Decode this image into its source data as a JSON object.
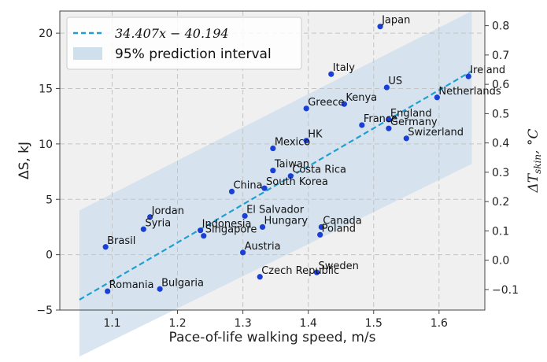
{
  "chart_data": {
    "type": "scatter",
    "xlabel": "Pace-of-life walking speed, m/s",
    "ylabel": "ΔS, kJ",
    "y2label": "ΔT_skin, °C",
    "xlim": [
      1.02,
      1.67
    ],
    "ylim": [
      -5,
      22
    ],
    "y2lim": [
      -0.17,
      0.85
    ],
    "x_ticks": [
      "1.1",
      "1.2",
      "1.3",
      "1.4",
      "1.5",
      "1.6"
    ],
    "y_ticks": [
      "−5",
      "0",
      "5",
      "10",
      "15",
      "20"
    ],
    "y2_ticks": [
      "−0.1",
      "0.0",
      "0.1",
      "0.2",
      "0.3",
      "0.4",
      "0.5",
      "0.6",
      "0.7",
      "0.8"
    ],
    "grid": true,
    "legend_position": "top-left",
    "legend": [
      "34.407x − 40.194",
      "95% prediction interval"
    ],
    "fit": {
      "slope": 34.407,
      "intercept": -40.194,
      "x_range": [
        1.05,
        1.65
      ]
    },
    "prediction_band": {
      "x": [
        1.05,
        1.65
      ],
      "lower": [
        -9.2,
        8.2
      ],
      "upper": [
        4.0,
        22.0
      ]
    },
    "colors": {
      "points": "#1a3fd6",
      "fit": "#1f9fd1",
      "band": "#cfe0ed"
    },
    "points": [
      {
        "label": "Japan",
        "x": 1.51,
        "y": 20.6
      },
      {
        "label": "Ireland",
        "x": 1.645,
        "y": 16.1
      },
      {
        "label": "Italy",
        "x": 1.435,
        "y": 16.3
      },
      {
        "label": "US",
        "x": 1.52,
        "y": 15.1
      },
      {
        "label": "Netherlands",
        "x": 1.597,
        "y": 14.2
      },
      {
        "label": "Kenya",
        "x": 1.455,
        "y": 13.6
      },
      {
        "label": "Greece",
        "x": 1.397,
        "y": 13.2
      },
      {
        "label": "England",
        "x": 1.523,
        "y": 12.2
      },
      {
        "label": "France",
        "x": 1.482,
        "y": 11.7
      },
      {
        "label": "Germany",
        "x": 1.523,
        "y": 11.4
      },
      {
        "label": "Swizerland",
        "x": 1.55,
        "y": 10.5
      },
      {
        "label": "HK",
        "x": 1.397,
        "y": 10.3
      },
      {
        "label": "Mexico",
        "x": 1.346,
        "y": 9.6
      },
      {
        "label": "Taiwan",
        "x": 1.346,
        "y": 7.6
      },
      {
        "label": "Costa Rica",
        "x": 1.373,
        "y": 7.1
      },
      {
        "label": "South Korea",
        "x": 1.333,
        "y": 6.0
      },
      {
        "label": "China",
        "x": 1.283,
        "y": 5.7
      },
      {
        "label": "Jordan",
        "x": 1.158,
        "y": 3.4
      },
      {
        "label": "El Salvador",
        "x": 1.303,
        "y": 3.5
      },
      {
        "label": "Syria",
        "x": 1.148,
        "y": 2.3
      },
      {
        "label": "Canada",
        "x": 1.42,
        "y": 2.5
      },
      {
        "label": "Hungary",
        "x": 1.33,
        "y": 2.5
      },
      {
        "label": "Indonesia",
        "x": 1.235,
        "y": 2.2
      },
      {
        "label": "Singapore",
        "x": 1.24,
        "y": 1.7
      },
      {
        "label": "Poland",
        "x": 1.418,
        "y": 1.8
      },
      {
        "label": "Brasil",
        "x": 1.09,
        "y": 0.7
      },
      {
        "label": "Austria",
        "x": 1.3,
        "y": 0.2
      },
      {
        "label": "Sweden",
        "x": 1.413,
        "y": -1.6
      },
      {
        "label": "Czech Republic",
        "x": 1.326,
        "y": -2.0
      },
      {
        "label": "Romania",
        "x": 1.093,
        "y": -3.3
      },
      {
        "label": "Bulgaria",
        "x": 1.173,
        "y": -3.1
      }
    ]
  }
}
